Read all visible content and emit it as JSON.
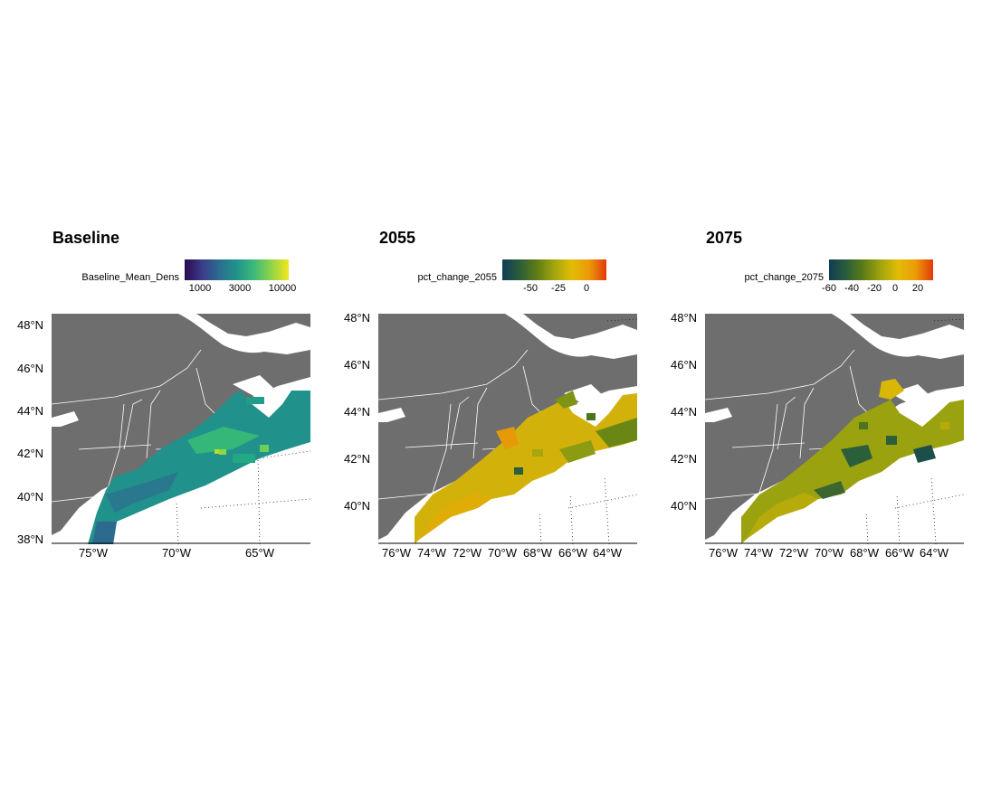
{
  "panels": [
    {
      "id": "baseline",
      "title": "Baseline",
      "legend": {
        "title": "Baseline_Mean_Dens",
        "palette": [
          "#2a0a4e",
          "#3b3b8a",
          "#2b6e8e",
          "#21938b",
          "#3db97a",
          "#8fd448",
          "#f3e61f"
        ],
        "ticks": [
          "1000",
          "3000",
          "10000"
        ]
      },
      "lat_labels": [
        "48°N",
        "46°N",
        "44°N",
        "42°N",
        "40°N",
        "38°N"
      ],
      "lon_labels": [
        "75°W",
        "70°W",
        "65°W"
      ]
    },
    {
      "id": "2055",
      "title": "2055",
      "legend": {
        "title": "pct_change_2055",
        "palette": [
          "#0e3d55",
          "#2b5e3a",
          "#5e7d16",
          "#a3a50e",
          "#e3bc05",
          "#ec9a08",
          "#e23a0a"
        ],
        "ticks": [
          "-50",
          "-25",
          "0"
        ]
      },
      "lat_labels": [
        "48°N",
        "46°N",
        "44°N",
        "42°N",
        "40°N"
      ],
      "lon_labels": [
        "76°W",
        "74°W",
        "72°W",
        "70°W",
        "68°W",
        "66°W",
        "64°W"
      ]
    },
    {
      "id": "2075",
      "title": "2075",
      "legend": {
        "title": "pct_change_2075",
        "palette": [
          "#0e3d55",
          "#2b5e3a",
          "#5e7d16",
          "#a3a50e",
          "#e3bc05",
          "#ec9a08",
          "#e23a0a"
        ],
        "ticks": [
          "-60",
          "-40",
          "-20",
          "0",
          "20"
        ]
      },
      "lat_labels": [
        "48°N",
        "46°N",
        "44°N",
        "42°N",
        "40°N"
      ],
      "lon_labels": [
        "76°W",
        "74°W",
        "72°W",
        "70°W",
        "68°W",
        "66°W",
        "64°W"
      ]
    }
  ]
}
